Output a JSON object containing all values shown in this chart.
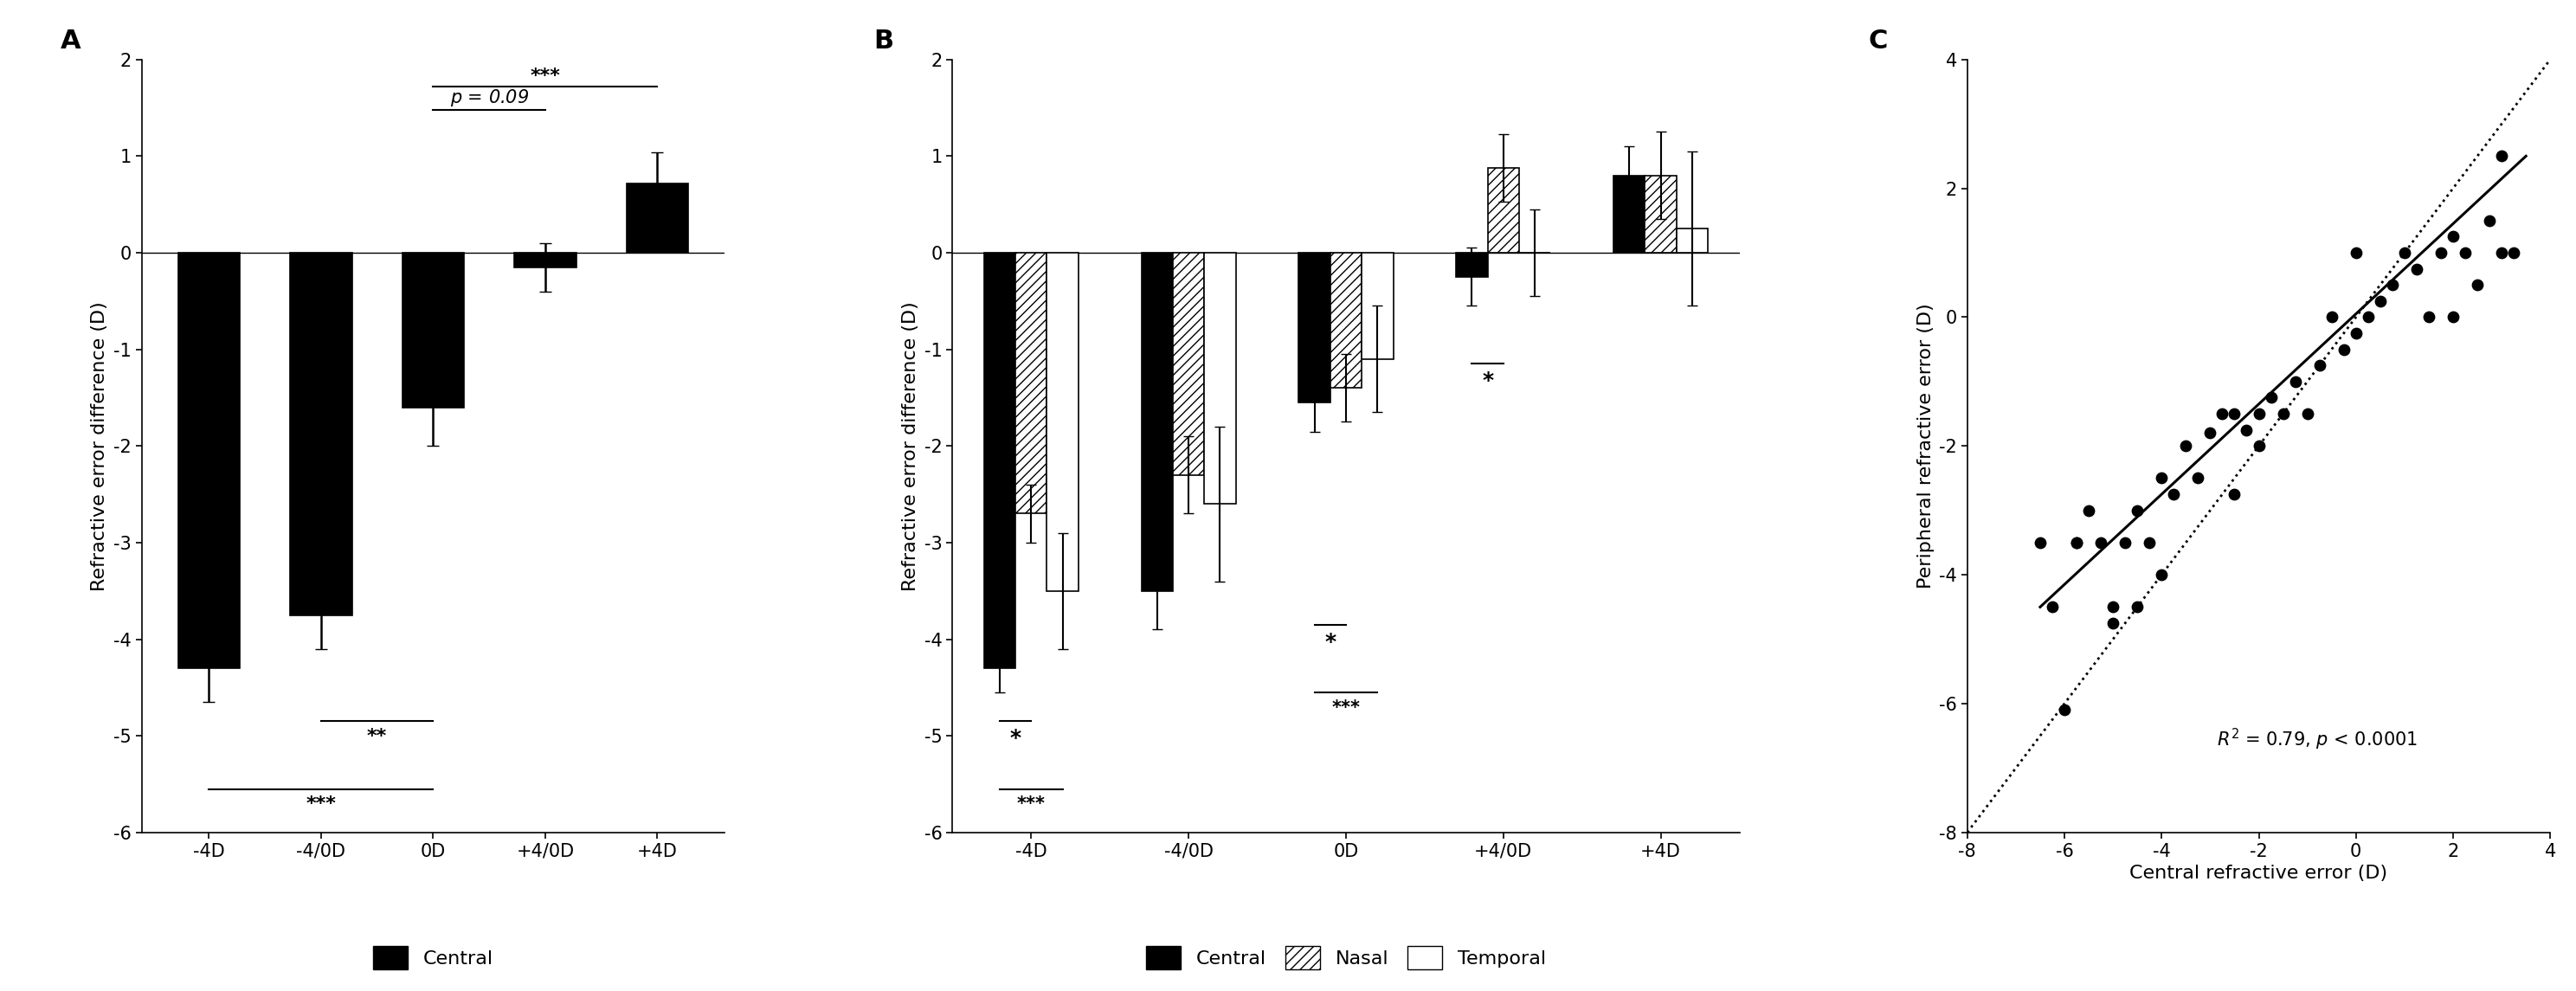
{
  "panel_A": {
    "categories": [
      "-4D",
      "-4/0D",
      "0D",
      "+4/0D",
      "+4D"
    ],
    "values": [
      -4.3,
      -3.75,
      -1.6,
      -0.15,
      0.72
    ],
    "errors": [
      0.35,
      0.35,
      0.4,
      0.25,
      0.32
    ],
    "ylim": [
      -6,
      2
    ],
    "yticks": [
      -6,
      -5,
      -4,
      -3,
      -2,
      -1,
      0,
      1,
      2
    ],
    "ylabel": "Refractive error difference (D)",
    "bar_color": "#000000"
  },
  "panel_B": {
    "categories": [
      "-4D",
      "-4/0D",
      "0D",
      "+4/0D",
      "+4D"
    ],
    "central_values": [
      -4.3,
      -3.5,
      -1.55,
      -0.25,
      0.8
    ],
    "central_errors": [
      0.25,
      0.4,
      0.3,
      0.3,
      0.3
    ],
    "nasal_values": [
      -2.7,
      -2.3,
      -1.4,
      0.88,
      0.8
    ],
    "nasal_errors": [
      0.3,
      0.4,
      0.35,
      0.35,
      0.45
    ],
    "temporal_values": [
      -3.5,
      -2.6,
      -1.1,
      0.0,
      0.25
    ],
    "temporal_errors": [
      0.6,
      0.8,
      0.55,
      0.45,
      0.8
    ],
    "ylim": [
      -6,
      2
    ],
    "yticks": [
      -6,
      -5,
      -4,
      -3,
      -2,
      -1,
      0,
      1,
      2
    ],
    "ylabel": "Refractive error difference (D)"
  },
  "panel_C": {
    "scatter_x": [
      -6.5,
      -6.25,
      -6.0,
      -5.75,
      -5.75,
      -5.5,
      -5.25,
      -5.0,
      -5.0,
      -4.75,
      -4.5,
      -4.5,
      -4.25,
      -4.0,
      -4.0,
      -3.75,
      -3.5,
      -3.25,
      -3.0,
      -2.75,
      -2.5,
      -2.5,
      -2.25,
      -2.0,
      -2.0,
      -1.75,
      -1.5,
      -1.25,
      -1.0,
      -0.75,
      -0.5,
      -0.25,
      0.0,
      0.0,
      0.25,
      0.5,
      0.75,
      1.0,
      1.25,
      1.5,
      1.75,
      2.0,
      2.0,
      2.25,
      2.5,
      2.75,
      3.0,
      3.0,
      3.25
    ],
    "scatter_y": [
      -3.5,
      -4.5,
      -6.1,
      -3.5,
      -3.5,
      -3.0,
      -3.5,
      -4.5,
      -4.75,
      -3.5,
      -4.5,
      -3.0,
      -3.5,
      -4.0,
      -2.5,
      -2.75,
      -2.0,
      -2.5,
      -1.8,
      -1.5,
      -2.75,
      -1.5,
      -1.75,
      -1.5,
      -2.0,
      -1.25,
      -1.5,
      -1.0,
      -1.5,
      -0.75,
      0.0,
      -0.5,
      -0.25,
      1.0,
      0.0,
      0.25,
      0.5,
      1.0,
      0.75,
      0.0,
      1.0,
      0.0,
      1.25,
      1.0,
      0.5,
      1.5,
      2.5,
      1.0,
      1.0
    ],
    "reg_x1": -6.5,
    "reg_y1": -4.5,
    "reg_x2": 3.5,
    "reg_y2": 2.5,
    "xlim": [
      -8,
      4
    ],
    "ylim": [
      -8,
      4
    ],
    "xticks": [
      -8,
      -6,
      -4,
      -2,
      0,
      2,
      4
    ],
    "yticks": [
      -8,
      -6,
      -4,
      -2,
      0,
      2,
      4
    ],
    "xlabel": "Central refractive error (D)",
    "ylabel": "Peripheral refractive error (D)"
  },
  "background_color": "#ffffff",
  "fontsize": 16,
  "tick_fontsize": 15,
  "label_fontsize": 22,
  "sig_fontsize": 16
}
